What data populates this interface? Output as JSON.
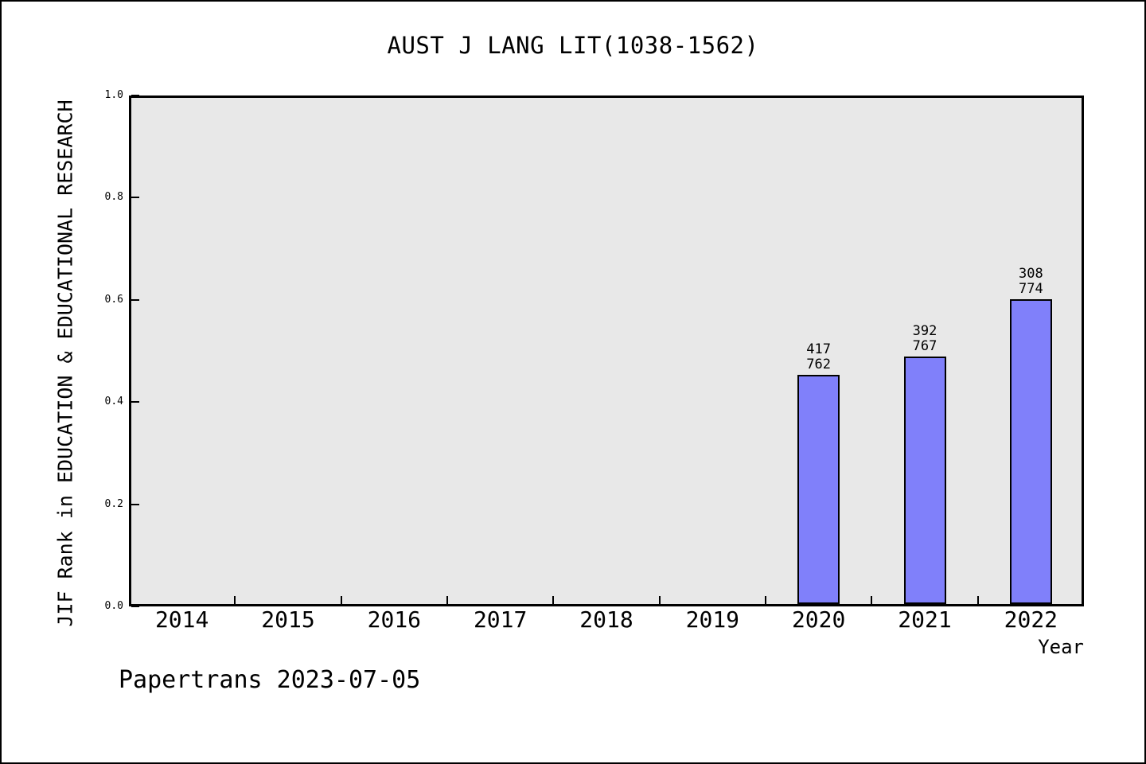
{
  "page": {
    "background": "#ffffff",
    "border_color": "#000000"
  },
  "chart_data": {
    "type": "bar",
    "title": "AUST J LANG LIT(1038-1562)",
    "xlabel": "Year",
    "ylabel": "JIF Rank in EDUCATION & EDUCATIONAL RESEARCH",
    "footer": "Papertrans 2023-07-05",
    "categories": [
      "2014",
      "2015",
      "2016",
      "2017",
      "2018",
      "2019",
      "2020",
      "2021",
      "2022"
    ],
    "y_ticks": [
      "0.0",
      "0.2",
      "0.4",
      "0.6",
      "0.8",
      "1.0"
    ],
    "ylim": [
      0.0,
      1.0
    ],
    "grid": false,
    "legend": "none",
    "bars": [
      {
        "year": "2020",
        "rank": "417",
        "total": "762",
        "value": 0.453
      },
      {
        "year": "2021",
        "rank": "392",
        "total": "767",
        "value": 0.489
      },
      {
        "year": "2022",
        "rank": "308",
        "total": "774",
        "value": 0.602
      }
    ],
    "colors": {
      "bar_fill": "#8080fa",
      "bar_border": "#000000",
      "plot_background": "#e8e8e8",
      "axis": "#000000",
      "text": "#000000"
    }
  }
}
